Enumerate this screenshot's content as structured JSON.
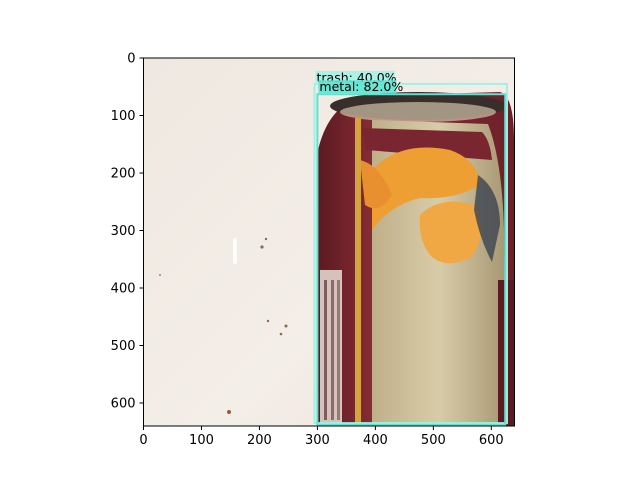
{
  "chart_data": {
    "type": "image",
    "title": "",
    "xlabel": "",
    "ylabel": "",
    "xlim": [
      0,
      640
    ],
    "ylim": [
      640,
      0
    ],
    "x_ticks": [
      0,
      100,
      200,
      300,
      400,
      500,
      600
    ],
    "y_ticks": [
      0,
      100,
      200,
      300,
      400,
      500,
      600
    ],
    "grid": false,
    "image_description": "photo of a red and cream food can with orange pictured slices, lying on a white surface",
    "detections": [
      {
        "label": "trash: 40.0%",
        "class": "trash",
        "score": 40.0,
        "x0": 295,
        "y0": 45,
        "x1": 627,
        "y1": 635,
        "color": "#9ff3e4"
      },
      {
        "label": "metal: 82.0%",
        "class": "metal",
        "score": 82.0,
        "x0": 300,
        "y0": 63,
        "x1": 624,
        "y1": 638,
        "color": "#5fe3cf"
      }
    ]
  },
  "colors": {
    "background": "#f1ebe5",
    "can_red": "#7d2730",
    "can_cream": "#cfc29b",
    "orange": "#eea035"
  }
}
